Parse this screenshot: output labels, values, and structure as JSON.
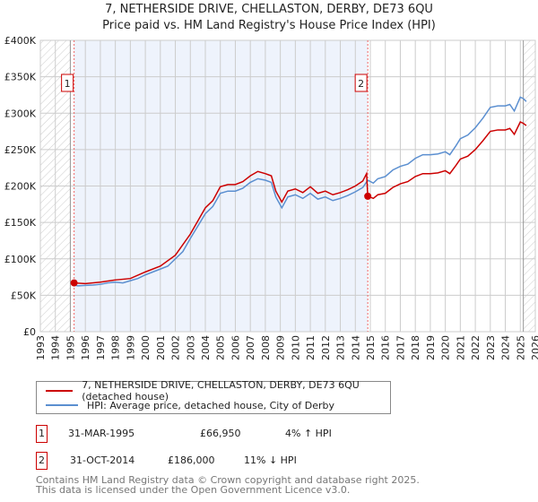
{
  "title": [
    "7, NETHERSIDE DRIVE, CHELLASTON, DERBY, DE73 6QU",
    "Price paid vs. HM Land Registry's House Price Index (HPI)"
  ],
  "chart_data": {
    "type": "line",
    "title": "7, NETHERSIDE DRIVE, CHELLASTON, DERBY, DE73 6QU - Price paid vs. HM Land Registry's House Price Index (HPI)",
    "xlim": [
      1993,
      2026
    ],
    "ylim": [
      0,
      400000
    ],
    "ytick_labels": [
      "£0",
      "£50K",
      "£100K",
      "£150K",
      "£200K",
      "£250K",
      "£300K",
      "£350K",
      "£400K"
    ],
    "yticks": [
      0,
      50,
      100,
      150,
      200,
      250,
      300,
      350,
      400
    ],
    "xticks": [
      1993,
      1994,
      1995,
      1996,
      1997,
      1998,
      1999,
      2000,
      2001,
      2002,
      2003,
      2004,
      2005,
      2006,
      2007,
      2008,
      2009,
      2010,
      2011,
      2012,
      2013,
      2014,
      2015,
      2016,
      2017,
      2018,
      2019,
      2020,
      2021,
      2022,
      2023,
      2024,
      2025,
      2026
    ],
    "y_units": "thousands GBP",
    "grid": true,
    "colors": {
      "property": "#cc0000",
      "hpi": "#5b8fd0",
      "shade": "#eef3fc"
    },
    "series": [
      {
        "name": "7, NETHERSIDE DRIVE, CHELLASTON, DERBY, DE73 6QU (detached house)",
        "key": "property",
        "points": [
          [
            1995.25,
            66.95
          ],
          [
            1996,
            66
          ],
          [
            1997,
            68
          ],
          [
            1998,
            71
          ],
          [
            1999,
            73
          ],
          [
            2000,
            82
          ],
          [
            2001,
            90
          ],
          [
            2002,
            105
          ],
          [
            2003,
            134
          ],
          [
            2004,
            170
          ],
          [
            2004.5,
            180
          ],
          [
            2005,
            199
          ],
          [
            2005.5,
            202
          ],
          [
            2006,
            202
          ],
          [
            2006.5,
            206
          ],
          [
            2007,
            214
          ],
          [
            2007.5,
            220
          ],
          [
            2008,
            217
          ],
          [
            2008.4,
            214
          ],
          [
            2008.7,
            193
          ],
          [
            2009.1,
            178
          ],
          [
            2009.5,
            193
          ],
          [
            2010,
            196
          ],
          [
            2010.5,
            191
          ],
          [
            2011,
            199
          ],
          [
            2011.5,
            190
          ],
          [
            2012,
            193
          ],
          [
            2012.5,
            188
          ],
          [
            2013,
            191
          ],
          [
            2013.5,
            195
          ],
          [
            2014,
            200
          ],
          [
            2014.5,
            207
          ],
          [
            2014.75,
            217
          ],
          [
            2014.83,
            186
          ],
          [
            2015.2,
            183
          ],
          [
            2015.5,
            188
          ],
          [
            2016,
            190
          ],
          [
            2016.5,
            198
          ],
          [
            2017,
            203
          ],
          [
            2017.5,
            206
          ],
          [
            2018,
            213
          ],
          [
            2018.5,
            217
          ],
          [
            2019,
            217
          ],
          [
            2019.5,
            218
          ],
          [
            2020,
            221
          ],
          [
            2020.3,
            217
          ],
          [
            2020.7,
            228
          ],
          [
            2021,
            237
          ],
          [
            2021.5,
            241
          ],
          [
            2022,
            250
          ],
          [
            2022.5,
            262
          ],
          [
            2023,
            275
          ],
          [
            2023.5,
            277
          ],
          [
            2024,
            277
          ],
          [
            2024.3,
            279
          ],
          [
            2024.6,
            271
          ],
          [
            2025,
            288
          ],
          [
            2025.2,
            286
          ],
          [
            2025.4,
            283
          ]
        ]
      },
      {
        "name": "HPI: Average price, detached house, City of Derby",
        "key": "hpi",
        "points": [
          [
            1995.25,
            64
          ],
          [
            1995.5,
            63
          ],
          [
            1996,
            63.5
          ],
          [
            1996.5,
            64
          ],
          [
            1997,
            65
          ],
          [
            1997.5,
            67
          ],
          [
            1998,
            68
          ],
          [
            1998.5,
            67
          ],
          [
            1999,
            70
          ],
          [
            1999.5,
            73
          ],
          [
            2000,
            78
          ],
          [
            2000.5,
            82
          ],
          [
            2001,
            86
          ],
          [
            2001.5,
            90
          ],
          [
            2002,
            100
          ],
          [
            2002.5,
            110
          ],
          [
            2003,
            128
          ],
          [
            2003.5,
            145
          ],
          [
            2004,
            162
          ],
          [
            2004.5,
            172
          ],
          [
            2005,
            190
          ],
          [
            2005.5,
            193
          ],
          [
            2006,
            193
          ],
          [
            2006.5,
            197
          ],
          [
            2007,
            205
          ],
          [
            2007.5,
            210
          ],
          [
            2008,
            208
          ],
          [
            2008.4,
            205
          ],
          [
            2008.7,
            185
          ],
          [
            2009.1,
            170
          ],
          [
            2009.5,
            185
          ],
          [
            2010,
            188
          ],
          [
            2010.5,
            183
          ],
          [
            2011,
            190
          ],
          [
            2011.5,
            182
          ],
          [
            2012,
            185
          ],
          [
            2012.5,
            180
          ],
          [
            2013,
            183
          ],
          [
            2013.5,
            187
          ],
          [
            2014,
            192
          ],
          [
            2014.5,
            198
          ],
          [
            2014.83,
            208
          ],
          [
            2015.2,
            204
          ],
          [
            2015.5,
            210
          ],
          [
            2016,
            213
          ],
          [
            2016.5,
            222
          ],
          [
            2017,
            227
          ],
          [
            2017.5,
            230
          ],
          [
            2018,
            238
          ],
          [
            2018.5,
            243
          ],
          [
            2019,
            243
          ],
          [
            2019.5,
            244
          ],
          [
            2020,
            247
          ],
          [
            2020.3,
            243
          ],
          [
            2020.7,
            255
          ],
          [
            2021,
            265
          ],
          [
            2021.5,
            270
          ],
          [
            2022,
            280
          ],
          [
            2022.5,
            293
          ],
          [
            2023,
            308
          ],
          [
            2023.5,
            310
          ],
          [
            2024,
            310
          ],
          [
            2024.3,
            312
          ],
          [
            2024.6,
            303
          ],
          [
            2025,
            322
          ],
          [
            2025.2,
            320
          ],
          [
            2025.4,
            316
          ]
        ]
      }
    ],
    "annotations": [
      {
        "label": "1",
        "x": 1995.25,
        "y": 66.95
      },
      {
        "label": "2",
        "x": 2014.83,
        "y": 186
      }
    ],
    "hatched_ranges": [
      [
        1993,
        1995
      ],
      [
        2025.2,
        2026
      ]
    ],
    "shaded_range": [
      1995.25,
      2014.83
    ]
  },
  "legend": [
    "7, NETHERSIDE DRIVE, CHELLASTON, DERBY, DE73 6QU (detached house)",
    "HPI: Average price, detached house, City of Derby"
  ],
  "sales": [
    {
      "num": "1",
      "date": "31-MAR-1995",
      "price": "£66,950",
      "hpi": "4% ↑ HPI"
    },
    {
      "num": "2",
      "date": "31-OCT-2014",
      "price": "£186,000",
      "hpi": "11% ↓ HPI"
    }
  ],
  "footer": [
    "Contains HM Land Registry data © Crown copyright and database right 2025.",
    "This data is licensed under the Open Government Licence v3.0."
  ]
}
